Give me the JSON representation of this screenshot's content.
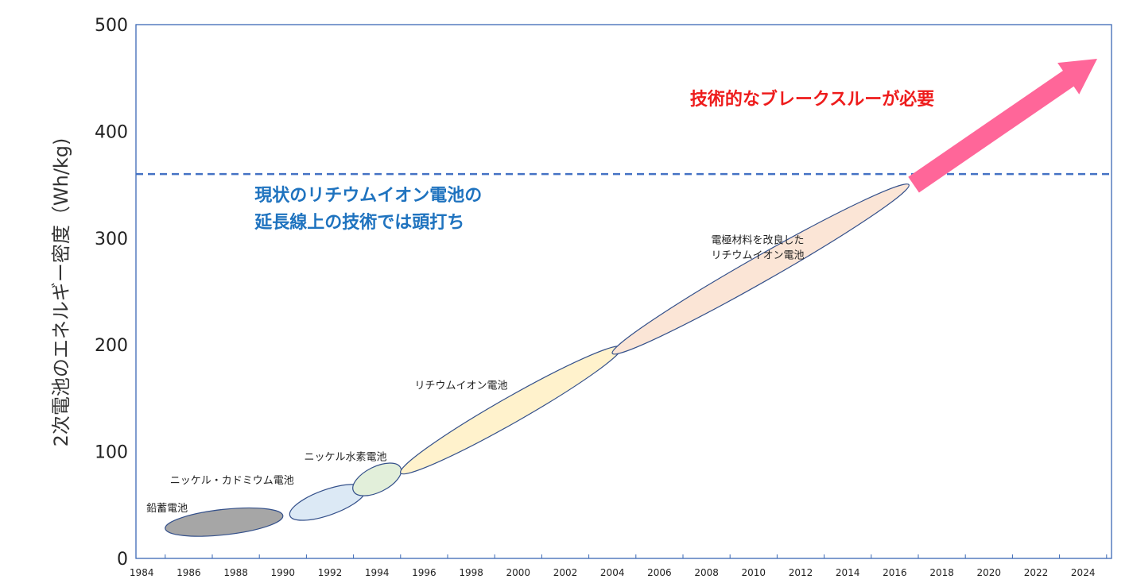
{
  "chart_data": {
    "type": "area",
    "xlabel": "",
    "ylabel": "2次電池のエネルギー密度（Wh/kg)",
    "xlim": [
      1983,
      2025
    ],
    "ylim": [
      0,
      500
    ],
    "x_ticks": [
      "1984",
      "1986",
      "1988",
      "1990",
      "1992",
      "1994",
      "1996",
      "1998",
      "2000",
      "2002",
      "2004",
      "2006",
      "2008",
      "2010",
      "2012",
      "2014",
      "2016",
      "2018",
      "2020",
      "2022",
      "2024"
    ],
    "y_ticks": [
      "0",
      "100",
      "200",
      "300",
      "400",
      "500"
    ],
    "series": [
      {
        "name": "鉛蓄電池",
        "label_lines": [
          "鉛蓄電池"
        ],
        "start": [
          1985,
          28
        ],
        "end": [
          1990,
          40
        ],
        "fill": "#a6a6a6",
        "label_at": [
          1984.2,
          44
        ]
      },
      {
        "name": "ニッケル・カドミウム電池",
        "label_lines": [
          "ニッケル・カドミウム電池"
        ],
        "start": [
          1990.3,
          40
        ],
        "end": [
          1993.5,
          65
        ],
        "fill": "#dce9f5",
        "label_at": [
          1985.2,
          70
        ]
      },
      {
        "name": "ニッケル水素電池",
        "label_lines": [
          "ニッケル水素電池"
        ],
        "start": [
          1993,
          63
        ],
        "end": [
          1995,
          85
        ],
        "fill": "#e2efda",
        "label_at": [
          1990.9,
          92
        ]
      },
      {
        "name": "リチウムイオン電池",
        "label_lines": [
          "リチウムイオン電池"
        ],
        "start": [
          1995,
          80
        ],
        "end": [
          2004.4,
          198
        ],
        "fill": "#fff2cc",
        "label_at": [
          1995.6,
          159
        ]
      },
      {
        "name": "電極材料を改良したリチウムイオン電池",
        "label_lines": [
          "電極材料を改良した",
          "リチウムイオン電池"
        ],
        "start": [
          2004,
          192
        ],
        "end": [
          2016.6,
          350
        ],
        "fill": "#fbe5d6",
        "label_at": [
          2008.2,
          295
        ]
      }
    ],
    "threshold": {
      "y": 360,
      "color": "#4472c4"
    },
    "arrow": {
      "from": [
        2016.8,
        350
      ],
      "to": [
        2024.6,
        468
      ],
      "color": "#ff6699"
    },
    "annotations": {
      "breakthrough": {
        "text": "技術的なブレークスルーが必要",
        "at": [
          2007.3,
          425
        ]
      },
      "limit": {
        "lines": [
          "現状のリチウムイオン電池の",
          "延長線上の技術では頭打ち"
        ],
        "at": [
          1988.8,
          335
        ]
      }
    }
  }
}
